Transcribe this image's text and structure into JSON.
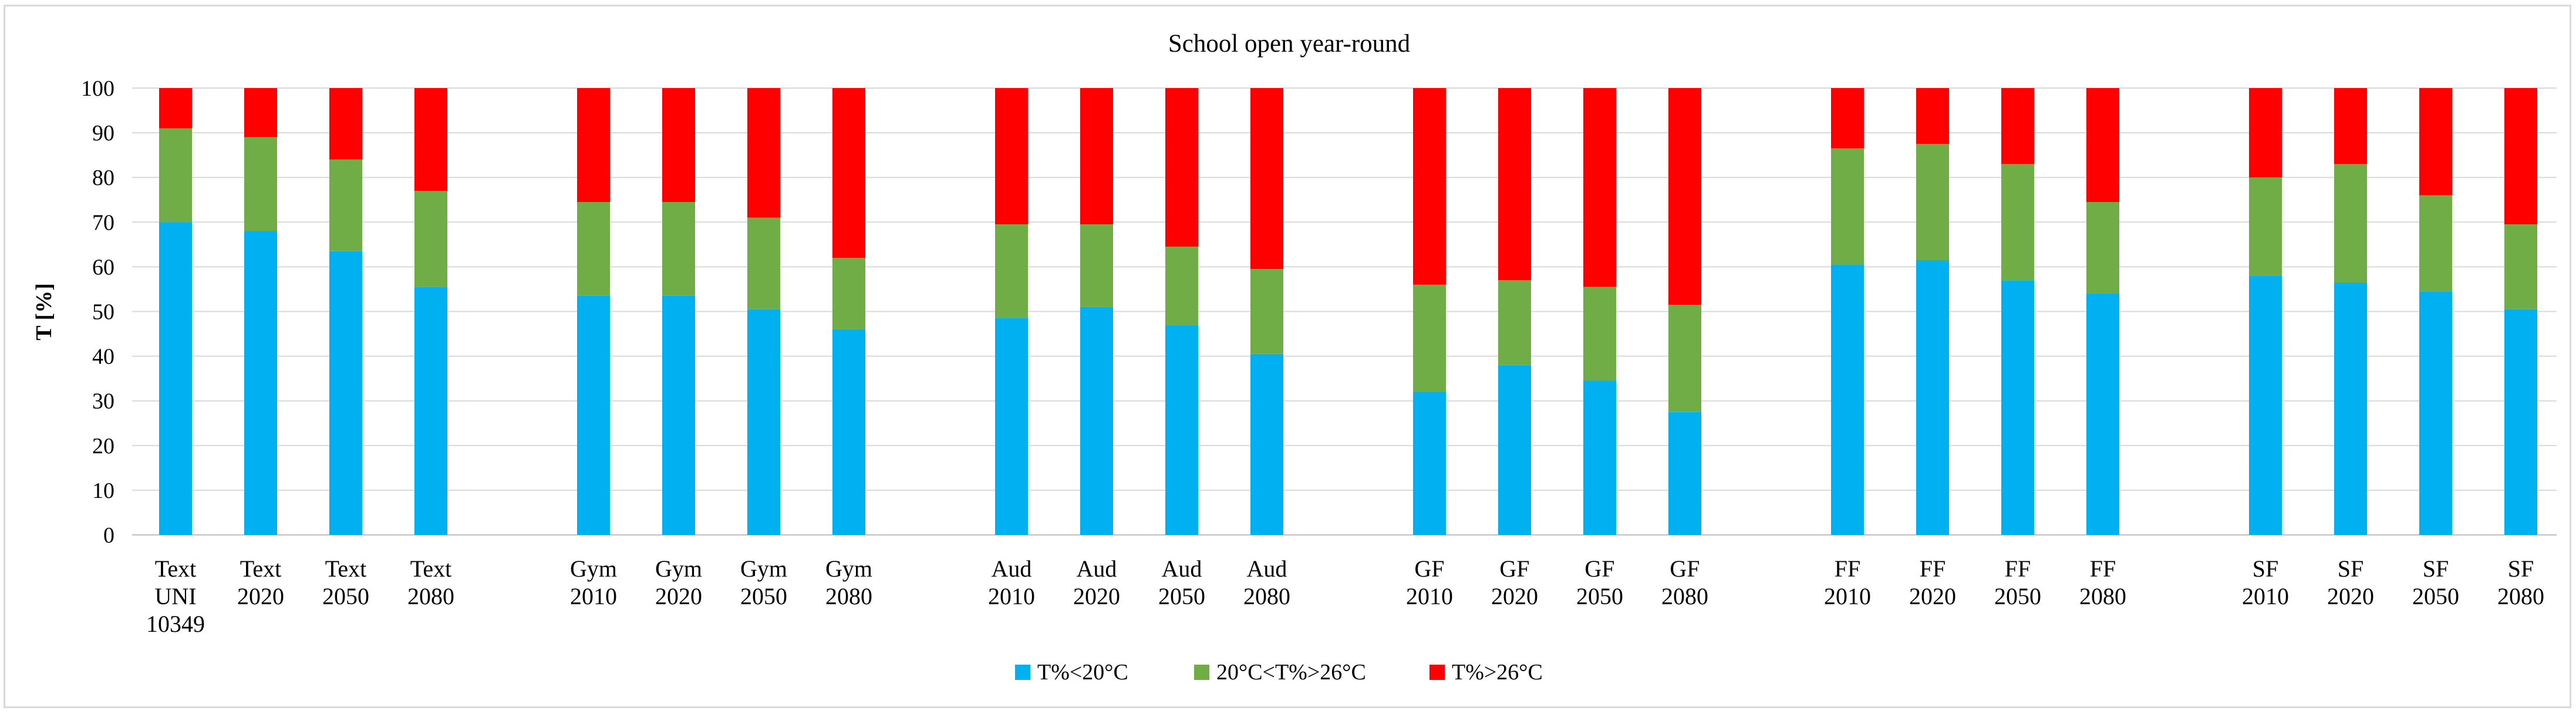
{
  "chart_data": {
    "type": "bar",
    "stacked": true,
    "title": "School open year-round",
    "xlabel": "",
    "ylabel": "T [%]",
    "ylim": [
      0,
      100
    ],
    "yticks": [
      "0",
      "10",
      "20",
      "30",
      "40",
      "50",
      "60",
      "70",
      "80",
      "90",
      "100"
    ],
    "grid": true,
    "legend_position": "bottom",
    "categories": [
      [
        "Text",
        "UNI",
        "10349"
      ],
      [
        "Text",
        "2020"
      ],
      [
        "Text",
        "2050"
      ],
      [
        "Text",
        "2080"
      ],
      [
        "Gym",
        "2010"
      ],
      [
        "Gym",
        "2020"
      ],
      [
        "Gym",
        "2050"
      ],
      [
        "Gym",
        "2080"
      ],
      [
        "Aud",
        "2010"
      ],
      [
        "Aud",
        "2020"
      ],
      [
        "Aud",
        "2050"
      ],
      [
        "Aud",
        "2080"
      ],
      [
        "GF",
        "2010"
      ],
      [
        "GF",
        "2020"
      ],
      [
        "GF",
        "2050"
      ],
      [
        "GF",
        "2080"
      ],
      [
        "FF",
        "2010"
      ],
      [
        "FF",
        "2020"
      ],
      [
        "FF",
        "2050"
      ],
      [
        "FF",
        "2080"
      ],
      [
        "SF",
        "2010"
      ],
      [
        "SF",
        "2020"
      ],
      [
        "SF",
        "2050"
      ],
      [
        "SF",
        "2080"
      ]
    ],
    "series": [
      {
        "name": "T%<20°C",
        "color": "#00b0f0",
        "values": [
          70,
          68,
          63.5,
          55.5,
          53.5,
          53.5,
          50.5,
          46,
          48.5,
          51,
          47,
          40.5,
          32,
          38,
          34.5,
          27.5,
          60.5,
          61.5,
          57,
          54,
          58,
          56.5,
          54.5,
          50.5
        ]
      },
      {
        "name": "20°C<T%>26°C",
        "color": "#70ad47",
        "values": [
          21,
          21,
          20.5,
          21.5,
          21,
          21,
          20.5,
          16,
          21,
          18.5,
          17.5,
          19,
          24,
          19,
          21,
          24,
          26,
          26,
          26,
          20.5,
          22,
          26.5,
          21.5,
          19
        ]
      },
      {
        "name": "T%>26°C",
        "color": "#ff0000",
        "values": [
          9,
          11,
          16,
          23,
          25.5,
          25.5,
          29,
          38,
          30.5,
          30.5,
          35.5,
          40.5,
          44,
          43,
          44.5,
          48.5,
          13.5,
          12.5,
          17,
          25.5,
          20,
          17,
          24,
          30.5
        ]
      }
    ]
  }
}
